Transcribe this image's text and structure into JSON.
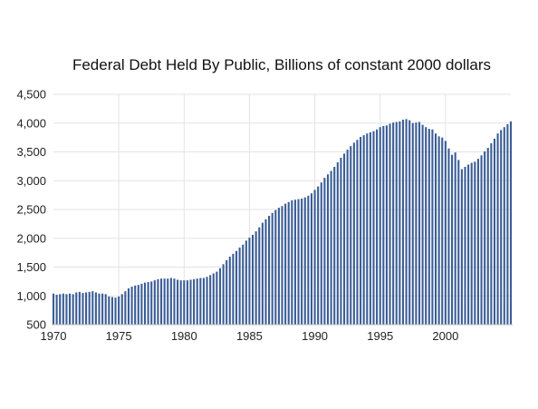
{
  "chart_data": {
    "type": "bar",
    "title": "Federal Debt Held By Public, Billions of constant 2000 dollars",
    "xlabel": "",
    "ylabel": "",
    "x_range": [
      1970,
      2005
    ],
    "ylim": [
      500,
      4500
    ],
    "y_ticks": [
      500,
      1000,
      1500,
      2000,
      2500,
      3000,
      3500,
      4000,
      4500
    ],
    "y_tick_labels": [
      "500",
      "1,000",
      "1,500",
      "2,000",
      "2,500",
      "3,000",
      "3,500",
      "4,000",
      "4,500"
    ],
    "x_ticks": [
      1970,
      1975,
      1980,
      1985,
      1990,
      1995,
      2000
    ],
    "x_tick_labels": [
      "1970",
      "1975",
      "1980",
      "1985",
      "1990",
      "1995",
      "2000"
    ],
    "grid": "vertical gridlines at x ticks, horizontal gridlines at y ticks",
    "legend": "none",
    "bar_color": "#3a5d96",
    "series": [
      {
        "values": [
          {
            "x": 1970.0,
            "y": 1040
          },
          {
            "x": 1970.25,
            "y": 1020
          },
          {
            "x": 1970.5,
            "y": 1030
          },
          {
            "x": 1970.75,
            "y": 1040
          },
          {
            "x": 1971.0,
            "y": 1030
          },
          {
            "x": 1971.25,
            "y": 1040
          },
          {
            "x": 1971.5,
            "y": 1030
          },
          {
            "x": 1971.75,
            "y": 1060
          },
          {
            "x": 1972.0,
            "y": 1070
          },
          {
            "x": 1972.25,
            "y": 1050
          },
          {
            "x": 1972.5,
            "y": 1060
          },
          {
            "x": 1972.75,
            "y": 1070
          },
          {
            "x": 1973.0,
            "y": 1080
          },
          {
            "x": 1973.25,
            "y": 1060
          },
          {
            "x": 1973.5,
            "y": 1040
          },
          {
            "x": 1973.75,
            "y": 1040
          },
          {
            "x": 1974.0,
            "y": 1030
          },
          {
            "x": 1974.25,
            "y": 990
          },
          {
            "x": 1974.5,
            "y": 980
          },
          {
            "x": 1974.75,
            "y": 970
          },
          {
            "x": 1975.0,
            "y": 990
          },
          {
            "x": 1975.25,
            "y": 1030
          },
          {
            "x": 1975.5,
            "y": 1080
          },
          {
            "x": 1975.75,
            "y": 1130
          },
          {
            "x": 1976.0,
            "y": 1160
          },
          {
            "x": 1976.25,
            "y": 1180
          },
          {
            "x": 1976.5,
            "y": 1190
          },
          {
            "x": 1976.75,
            "y": 1210
          },
          {
            "x": 1977.0,
            "y": 1230
          },
          {
            "x": 1977.25,
            "y": 1240
          },
          {
            "x": 1977.5,
            "y": 1250
          },
          {
            "x": 1977.75,
            "y": 1270
          },
          {
            "x": 1978.0,
            "y": 1290
          },
          {
            "x": 1978.25,
            "y": 1300
          },
          {
            "x": 1978.5,
            "y": 1300
          },
          {
            "x": 1978.75,
            "y": 1300
          },
          {
            "x": 1979.0,
            "y": 1310
          },
          {
            "x": 1979.25,
            "y": 1300
          },
          {
            "x": 1979.5,
            "y": 1280
          },
          {
            "x": 1979.75,
            "y": 1270
          },
          {
            "x": 1980.0,
            "y": 1270
          },
          {
            "x": 1980.25,
            "y": 1270
          },
          {
            "x": 1980.5,
            "y": 1280
          },
          {
            "x": 1980.75,
            "y": 1290
          },
          {
            "x": 1981.0,
            "y": 1300
          },
          {
            "x": 1981.25,
            "y": 1310
          },
          {
            "x": 1981.5,
            "y": 1310
          },
          {
            "x": 1981.75,
            "y": 1330
          },
          {
            "x": 1982.0,
            "y": 1360
          },
          {
            "x": 1982.25,
            "y": 1390
          },
          {
            "x": 1982.5,
            "y": 1420
          },
          {
            "x": 1982.75,
            "y": 1480
          },
          {
            "x": 1983.0,
            "y": 1550
          },
          {
            "x": 1983.25,
            "y": 1620
          },
          {
            "x": 1983.5,
            "y": 1680
          },
          {
            "x": 1983.75,
            "y": 1730
          },
          {
            "x": 1984.0,
            "y": 1780
          },
          {
            "x": 1984.25,
            "y": 1840
          },
          {
            "x": 1984.5,
            "y": 1890
          },
          {
            "x": 1984.75,
            "y": 1960
          },
          {
            "x": 1985.0,
            "y": 2010
          },
          {
            "x": 1985.25,
            "y": 2060
          },
          {
            "x": 1985.5,
            "y": 2120
          },
          {
            "x": 1985.75,
            "y": 2190
          },
          {
            "x": 1986.0,
            "y": 2270
          },
          {
            "x": 1986.25,
            "y": 2330
          },
          {
            "x": 1986.5,
            "y": 2390
          },
          {
            "x": 1986.75,
            "y": 2440
          },
          {
            "x": 1987.0,
            "y": 2490
          },
          {
            "x": 1987.25,
            "y": 2530
          },
          {
            "x": 1987.5,
            "y": 2560
          },
          {
            "x": 1987.75,
            "y": 2600
          },
          {
            "x": 1988.0,
            "y": 2630
          },
          {
            "x": 1988.25,
            "y": 2660
          },
          {
            "x": 1988.5,
            "y": 2670
          },
          {
            "x": 1988.75,
            "y": 2680
          },
          {
            "x": 1989.0,
            "y": 2690
          },
          {
            "x": 1989.25,
            "y": 2710
          },
          {
            "x": 1989.5,
            "y": 2740
          },
          {
            "x": 1989.75,
            "y": 2780
          },
          {
            "x": 1990.0,
            "y": 2840
          },
          {
            "x": 1990.25,
            "y": 2900
          },
          {
            "x": 1990.5,
            "y": 2970
          },
          {
            "x": 1990.75,
            "y": 3050
          },
          {
            "x": 1991.0,
            "y": 3110
          },
          {
            "x": 1991.25,
            "y": 3170
          },
          {
            "x": 1991.5,
            "y": 3240
          },
          {
            "x": 1991.75,
            "y": 3320
          },
          {
            "x": 1992.0,
            "y": 3400
          },
          {
            "x": 1992.25,
            "y": 3470
          },
          {
            "x": 1992.5,
            "y": 3540
          },
          {
            "x": 1992.75,
            "y": 3600
          },
          {
            "x": 1993.0,
            "y": 3660
          },
          {
            "x": 1993.25,
            "y": 3710
          },
          {
            "x": 1993.5,
            "y": 3760
          },
          {
            "x": 1993.75,
            "y": 3790
          },
          {
            "x": 1994.0,
            "y": 3820
          },
          {
            "x": 1994.25,
            "y": 3840
          },
          {
            "x": 1994.5,
            "y": 3860
          },
          {
            "x": 1994.75,
            "y": 3890
          },
          {
            "x": 1995.0,
            "y": 3930
          },
          {
            "x": 1995.25,
            "y": 3950
          },
          {
            "x": 1995.5,
            "y": 3960
          },
          {
            "x": 1995.75,
            "y": 3990
          },
          {
            "x": 1996.0,
            "y": 4010
          },
          {
            "x": 1996.25,
            "y": 4020
          },
          {
            "x": 1996.5,
            "y": 4030
          },
          {
            "x": 1996.75,
            "y": 4060
          },
          {
            "x": 1997.0,
            "y": 4070
          },
          {
            "x": 1997.25,
            "y": 4050
          },
          {
            "x": 1997.5,
            "y": 4000
          },
          {
            "x": 1997.75,
            "y": 4010
          },
          {
            "x": 1998.0,
            "y": 4020
          },
          {
            "x": 1998.25,
            "y": 3970
          },
          {
            "x": 1998.5,
            "y": 3930
          },
          {
            "x": 1998.75,
            "y": 3900
          },
          {
            "x": 1999.0,
            "y": 3890
          },
          {
            "x": 1999.25,
            "y": 3820
          },
          {
            "x": 1999.5,
            "y": 3770
          },
          {
            "x": 1999.75,
            "y": 3750
          },
          {
            "x": 2000.0,
            "y": 3690
          },
          {
            "x": 2000.25,
            "y": 3560
          },
          {
            "x": 2000.5,
            "y": 3450
          },
          {
            "x": 2000.75,
            "y": 3490
          },
          {
            "x": 2001.0,
            "y": 3360
          },
          {
            "x": 2001.25,
            "y": 3200
          },
          {
            "x": 2001.5,
            "y": 3240
          },
          {
            "x": 2001.75,
            "y": 3280
          },
          {
            "x": 2002.0,
            "y": 3310
          },
          {
            "x": 2002.25,
            "y": 3330
          },
          {
            "x": 2002.5,
            "y": 3380
          },
          {
            "x": 2002.75,
            "y": 3440
          },
          {
            "x": 2003.0,
            "y": 3510
          },
          {
            "x": 2003.25,
            "y": 3570
          },
          {
            "x": 2003.5,
            "y": 3650
          },
          {
            "x": 2003.75,
            "y": 3730
          },
          {
            "x": 2004.0,
            "y": 3820
          },
          {
            "x": 2004.25,
            "y": 3880
          },
          {
            "x": 2004.5,
            "y": 3930
          },
          {
            "x": 2004.75,
            "y": 3980
          },
          {
            "x": 2005.0,
            "y": 4030
          }
        ]
      }
    ]
  }
}
